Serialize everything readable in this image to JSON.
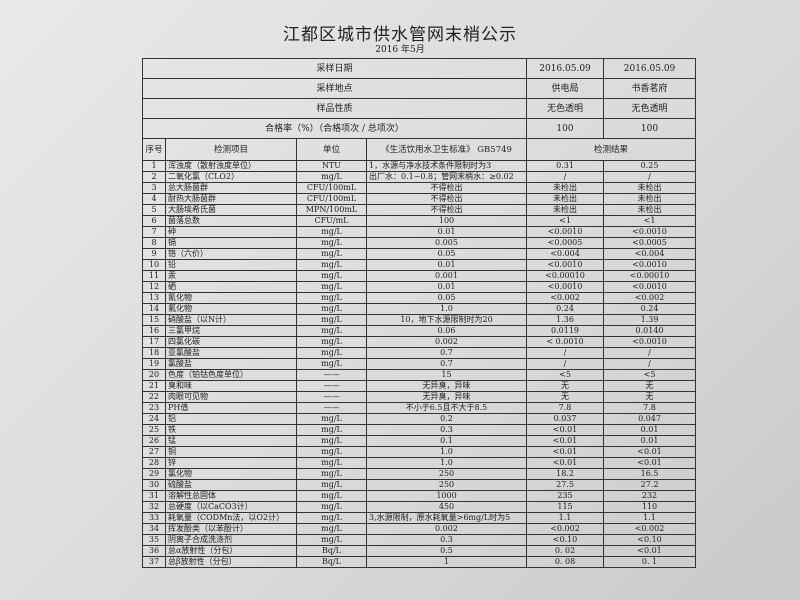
{
  "title": "江都区城市供水管网末梢公示",
  "subtitle": "2016 年5月",
  "top": [
    {
      "label": "采样日期",
      "v1": "2016.05.09",
      "v2": "2016.05.09"
    },
    {
      "label": "采样地点",
      "v1": "供电局",
      "v2": "书香茗府"
    },
    {
      "label": "样品性质",
      "v1": "无色透明",
      "v2": "无色透明"
    },
    {
      "label": "合格率（%）（合格项次 / 总项次）",
      "v1": "100",
      "v2": "100"
    }
  ],
  "header": {
    "no": "序号",
    "item": "检测项目",
    "unit": "单位",
    "std": "《生活饮用水卫生标准》 GB5749",
    "result": "检测结果"
  },
  "rows": [
    [
      "1",
      "浑浊度（散射浊度单位）",
      "NTU",
      "1，水源与净水技术条件限制时为3",
      "0.31",
      "0.25"
    ],
    [
      "2",
      "二氧化氯（CLO2）",
      "mg/L",
      "出厂水：0.1~0.8；管网末梢水：≥0.02",
      "/",
      "/"
    ],
    [
      "3",
      "总大肠菌群",
      "CFU/100mL",
      "不得检出",
      "未检出",
      "未检出"
    ],
    [
      "4",
      "耐热大肠菌群",
      "CFU/100mL",
      "不得检出",
      "未检出",
      "未检出"
    ],
    [
      "5",
      "大肠埃希氏菌",
      "MPN/100mL",
      "不得检出",
      "未检出",
      "未检出"
    ],
    [
      "6",
      "菌落总数",
      "CFU/mL",
      "100",
      "<1",
      "<1"
    ],
    [
      "7",
      "砷",
      "mg/L",
      "0.01",
      "<0.0010",
      "<0.0010"
    ],
    [
      "8",
      "镉",
      "mg/L",
      "0.005",
      "<0.0005",
      "<0.0005"
    ],
    [
      "9",
      "铬（六价）",
      "mg/L",
      "0.05",
      "<0.004",
      "<0.004"
    ],
    [
      "10",
      "铅",
      "mg/L",
      "0.01",
      "<0.0010",
      "<0.0010"
    ],
    [
      "11",
      "汞",
      "mg/L",
      "0.001",
      "<0.00010",
      "<0.00010"
    ],
    [
      "12",
      "硒",
      "mg/L",
      "0.01",
      "<0.0010",
      "<0.0010"
    ],
    [
      "13",
      "氰化物",
      "mg/L",
      "0.05",
      "<0.002",
      "<0.002"
    ],
    [
      "14",
      "氟化物",
      "mg/L",
      "1.0",
      "0.24",
      "0.24"
    ],
    [
      "15",
      "硝酸盐（以N计）",
      "mg/L",
      "10，地下水源限制时为20",
      "1.36",
      "1.39"
    ],
    [
      "16",
      "三氯甲烷",
      "mg/L",
      "0.06",
      "0.0119",
      "0.0140"
    ],
    [
      "17",
      "四氯化碳",
      "mg/L",
      "0.002",
      "< 0.0010",
      "<0.0010"
    ],
    [
      "18",
      "亚氯酸盐",
      "mg/L",
      "0.7",
      "/",
      "/"
    ],
    [
      "19",
      "氯酸盐",
      "mg/L",
      "0.7",
      "/",
      "/"
    ],
    [
      "20",
      "色度（铂钴色度单位）",
      "——",
      "15",
      "<5",
      "<5"
    ],
    [
      "21",
      "臭和味",
      "——",
      "无异臭，异味",
      "无",
      "无"
    ],
    [
      "22",
      "肉眼可见物",
      "——",
      "无异臭，异味",
      "无",
      "无"
    ],
    [
      "23",
      "PH值",
      "——",
      "不小于6.5且不大于8.5",
      "7.8",
      "7.8"
    ],
    [
      "24",
      "铝",
      "mg/L",
      "0.2",
      "0.037",
      "0.047"
    ],
    [
      "25",
      "铁",
      "mg/L",
      "0.3",
      "<0.01",
      "0.01"
    ],
    [
      "26",
      "锰",
      "mg/L",
      "0.1",
      "<0.01",
      "0.01"
    ],
    [
      "27",
      "铜",
      "mg/L",
      "1.0",
      "<0.01",
      "<0.01"
    ],
    [
      "28",
      "锌",
      "mg/L",
      "1.0",
      "<0.01",
      "<0.01"
    ],
    [
      "29",
      "氯化物",
      "mg/L",
      "250",
      "18.2",
      "16.5"
    ],
    [
      "30",
      "硫酸盐",
      "mg/L",
      "250",
      "27.5",
      "27.2"
    ],
    [
      "31",
      "溶解性总固体",
      "mg/L",
      "1000",
      "235",
      "232"
    ],
    [
      "32",
      "总硬度（以CaCO3计）",
      "mg/L",
      "450",
      "115",
      "110"
    ],
    [
      "33",
      "耗氧量（CODMn法，以O2计）",
      "mg/L",
      "3,水源限制，原水耗氧量>6mg/L时为5",
      "1.1",
      "1.1"
    ],
    [
      "34",
      "挥发酚类（以苯酚计）",
      "mg/L",
      "0.002",
      "<0.002",
      "<0.002"
    ],
    [
      "35",
      "阴离子合成洗涤剂",
      "mg/L",
      "0.3",
      "<0.10",
      "<0.10"
    ],
    [
      "36",
      "总α放射性（分包）",
      "Bq/L",
      "0.5",
      "0. 02",
      "<0.01"
    ],
    [
      "37",
      "总β放射性（分包）",
      "Bq/L",
      "1",
      "0. 08",
      "0. 1"
    ]
  ]
}
